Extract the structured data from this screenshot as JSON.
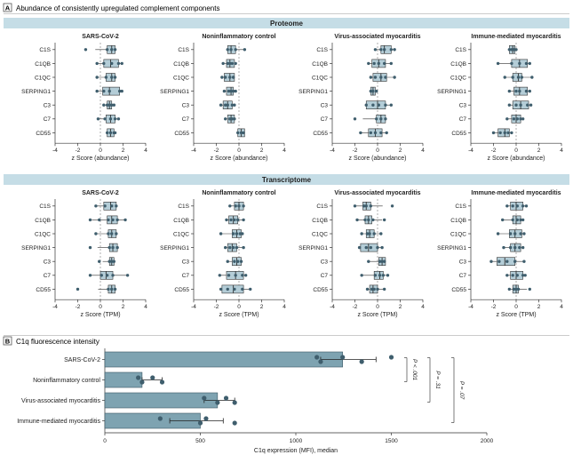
{
  "panelA": {
    "letter": "A",
    "title": "Abundance of consistently upregulated complement components",
    "sections": [
      {
        "header": "Proteome",
        "xlabel": "z Score (abundance)",
        "charts": [
          {
            "title": "SARS-CoV-2",
            "boxes": [
              {
                "q1": 0.6,
                "median": 1.0,
                "q3": 1.3,
                "points": [
                  -1.3,
                  0.6,
                  1.0,
                  1.3
                ]
              },
              {
                "q1": 0.3,
                "median": 0.9,
                "q3": 1.6,
                "points": [
                  -0.3,
                  0.3,
                  1.0,
                  1.6,
                  1.9
                ]
              },
              {
                "q1": 0.5,
                "median": 1.0,
                "q3": 1.3,
                "points": [
                  -0.3,
                  0.5,
                  1.0,
                  1.3
                ]
              },
              {
                "q1": 0.2,
                "median": 0.8,
                "q3": 1.7,
                "points": [
                  -0.3,
                  0.3,
                  0.8,
                  1.7,
                  1.9
                ]
              },
              {
                "q1": 0.6,
                "median": 0.8,
                "q3": 1.0,
                "points": [
                  0.3,
                  0.6,
                  0.8,
                  1.0,
                  1.2
                ]
              },
              {
                "q1": 0.5,
                "median": 0.9,
                "q3": 1.3,
                "points": [
                  -0.2,
                  0.4,
                  0.9,
                  1.3,
                  1.6
                ]
              },
              {
                "q1": 0.6,
                "median": 0.9,
                "q3": 1.2,
                "points": [
                  0.6,
                  0.9,
                  1.2,
                  1.3
                ]
              }
            ]
          },
          {
            "title": "Noninflammatory control",
            "boxes": [
              {
                "q1": -1.0,
                "median": -0.7,
                "q3": -0.3,
                "points": [
                  -1.0,
                  -0.7,
                  -0.3,
                  0.5
                ]
              },
              {
                "q1": -1.1,
                "median": -0.8,
                "q3": -0.4,
                "points": [
                  -1.4,
                  -1.0,
                  -0.8,
                  -0.6,
                  -0.3
                ]
              },
              {
                "q1": -1.3,
                "median": -0.8,
                "q3": -0.4,
                "points": [
                  -1.5,
                  -1.2,
                  -0.8,
                  -0.5
                ]
              },
              {
                "q1": -1.1,
                "median": -0.7,
                "q3": -0.5,
                "points": [
                  -1.3,
                  -0.9,
                  -0.7,
                  -0.5,
                  -0.3
                ]
              },
              {
                "q1": -1.4,
                "median": -1.0,
                "q3": -0.6,
                "points": [
                  -1.6,
                  -1.2,
                  -1.0,
                  -0.6,
                  -0.4
                ]
              },
              {
                "q1": -1.0,
                "median": -0.7,
                "q3": -0.4,
                "points": [
                  -1.2,
                  -0.8,
                  -0.6,
                  -0.4
                ]
              },
              {
                "q1": -0.1,
                "median": 0.2,
                "q3": 0.5,
                "points": [
                  -0.1,
                  0.2,
                  0.4
                ]
              }
            ]
          },
          {
            "title": "Virus-associated myocarditis",
            "boxes": [
              {
                "q1": 0.3,
                "median": 0.6,
                "q3": 1.2,
                "points": [
                  -0.2,
                  0.3,
                  0.6,
                  1.2,
                  1.5
                ]
              },
              {
                "q1": -0.5,
                "median": 0.1,
                "q3": 0.7,
                "points": [
                  -0.8,
                  -0.3,
                  0.1,
                  0.6,
                  1.2
                ]
              },
              {
                "q1": -0.4,
                "median": 0.3,
                "q3": 0.8,
                "points": [
                  -0.6,
                  -0.2,
                  0.3,
                  0.7,
                  1.5
                ]
              },
              {
                "q1": -0.6,
                "median": -0.4,
                "q3": -0.2,
                "points": [
                  -0.6,
                  -0.4,
                  -0.1
                ]
              },
              {
                "q1": -1.0,
                "median": 0.0,
                "q3": 0.7,
                "points": [
                  -1.0,
                  -0.4,
                  0.1,
                  0.7,
                  1.2
                ]
              },
              {
                "q1": -0.1,
                "median": 0.3,
                "q3": 0.7,
                "points": [
                  -2.0,
                  -0.1,
                  0.3,
                  0.7
                ]
              },
              {
                "q1": -0.8,
                "median": -0.2,
                "q3": 0.4,
                "points": [
                  -1.5,
                  -0.6,
                  -0.2,
                  0.3,
                  0.8
                ]
              }
            ]
          },
          {
            "title": "Immune-mediated myocarditis",
            "boxes": [
              {
                "q1": -0.6,
                "median": -0.3,
                "q3": -0.1,
                "points": [
                  -0.6,
                  -0.4,
                  -0.2,
                  0.0
                ]
              },
              {
                "q1": -0.4,
                "median": 0.3,
                "q3": 1.0,
                "points": [
                  -1.6,
                  -0.4,
                  0.3,
                  0.9,
                  1.2
                ]
              },
              {
                "q1": -0.3,
                "median": 0.2,
                "q3": 0.5,
                "points": [
                  -1.0,
                  -0.3,
                  0.2,
                  0.5,
                  1.4
                ]
              },
              {
                "q1": -0.2,
                "median": 0.3,
                "q3": 1.0,
                "points": [
                  -0.6,
                  0.0,
                  0.3,
                  0.9,
                  1.2
                ]
              },
              {
                "q1": -0.3,
                "median": 0.4,
                "q3": 1.1,
                "points": [
                  -0.6,
                  0.0,
                  0.4,
                  1.0,
                  1.3
                ]
              },
              {
                "q1": -0.4,
                "median": 0.0,
                "q3": 0.4,
                "points": [
                  -0.8,
                  -0.2,
                  0.1,
                  0.4,
                  0.6
                ]
              },
              {
                "q1": -1.6,
                "median": -1.0,
                "q3": -0.6,
                "points": [
                  -2.0,
                  -1.4,
                  -1.0,
                  -0.7,
                  -0.4
                ]
              }
            ]
          }
        ]
      },
      {
        "header": "Transcriptome",
        "xlabel": "z Score (TPM)",
        "charts": [
          {
            "title": "SARS-CoV-2",
            "boxes": [
              {
                "q1": 0.3,
                "median": 0.9,
                "q3": 1.4,
                "points": [
                  -0.4,
                  0.4,
                  1.0,
                  1.4
                ]
              },
              {
                "q1": 0.6,
                "median": 1.0,
                "q3": 1.5,
                "points": [
                  -0.9,
                  -0.1,
                  0.7,
                  1.1,
                  1.5,
                  2.2
                ]
              },
              {
                "q1": 0.7,
                "median": 1.0,
                "q3": 1.4,
                "points": [
                  -0.4,
                  0.7,
                  1.0,
                  1.4
                ]
              },
              {
                "q1": 0.8,
                "median": 1.1,
                "q3": 1.5,
                "points": [
                  -0.9,
                  0.8,
                  1.1,
                  1.5
                ]
              },
              {
                "q1": 0.8,
                "median": 1.0,
                "q3": 1.2,
                "points": [
                  -0.1,
                  0.8,
                  1.0,
                  1.2
                ]
              },
              {
                "q1": 0.0,
                "median": 0.5,
                "q3": 1.1,
                "points": [
                  -0.9,
                  0.1,
                  0.6,
                  1.1,
                  2.4
                ]
              },
              {
                "q1": 0.7,
                "median": 1.0,
                "q3": 1.3,
                "points": [
                  -2.0,
                  0.7,
                  1.0,
                  1.3
                ]
              }
            ]
          },
          {
            "title": "Noninflammatory control",
            "boxes": [
              {
                "q1": -0.4,
                "median": 0.0,
                "q3": 0.4,
                "points": [
                  -0.8,
                  -0.3,
                  0.0,
                  0.4
                ]
              },
              {
                "q1": -0.9,
                "median": -0.5,
                "q3": -0.1,
                "points": [
                  -1.1,
                  -0.7,
                  -0.4,
                  -0.1,
                  0.4
                ]
              },
              {
                "q1": -0.6,
                "median": -0.2,
                "q3": 0.2,
                "points": [
                  -1.6,
                  -0.5,
                  -0.2,
                  0.1,
                  0.3
                ]
              },
              {
                "q1": -1.0,
                "median": -0.6,
                "q3": -0.2,
                "points": [
                  -1.2,
                  -0.8,
                  -0.5,
                  -0.2,
                  0.4
                ]
              },
              {
                "q1": -0.6,
                "median": -0.2,
                "q3": 0.2,
                "points": [
                  -1.0,
                  -0.4,
                  -0.1,
                  0.2
                ]
              },
              {
                "q1": -1.1,
                "median": -0.3,
                "q3": 0.4,
                "points": [
                  -1.7,
                  -0.9,
                  -0.3,
                  0.3,
                  0.6
                ]
              },
              {
                "q1": -1.5,
                "median": -0.5,
                "q3": 0.4,
                "points": [
                  -1.6,
                  -1.0,
                  -0.4,
                  0.3,
                  1.0
                ]
              }
            ]
          },
          {
            "title": "Virus-associated myocarditis",
            "boxes": [
              {
                "q1": -1.3,
                "median": -1.0,
                "q3": -0.6,
                "points": [
                  -2.0,
                  -1.2,
                  -1.0,
                  -0.6,
                  1.3
                ]
              },
              {
                "q1": -1.1,
                "median": -0.8,
                "q3": -0.5,
                "points": [
                  -1.8,
                  -1.1,
                  -0.8,
                  -0.4,
                  0.6
                ]
              },
              {
                "q1": -1.0,
                "median": -0.7,
                "q3": -0.3,
                "points": [
                  -1.4,
                  -0.9,
                  -0.7,
                  -0.3,
                  0.3
                ]
              },
              {
                "q1": -1.5,
                "median": -0.8,
                "q3": 0.0,
                "points": [
                  -1.6,
                  -1.0,
                  -0.6,
                  0.0,
                  0.4
                ]
              },
              {
                "q1": 0.1,
                "median": 0.4,
                "q3": 0.7,
                "points": [
                  -0.8,
                  0.2,
                  0.4,
                  0.6
                ]
              },
              {
                "q1": -0.3,
                "median": 0.2,
                "q3": 0.5,
                "points": [
                  -1.4,
                  -0.2,
                  0.2,
                  0.5,
                  0.9
                ]
              },
              {
                "q1": -0.7,
                "median": -0.4,
                "q3": 0.0,
                "points": [
                  -0.9,
                  -0.5,
                  -0.3,
                  0.0,
                  0.6
                ]
              }
            ]
          },
          {
            "title": "Immune-mediated myocarditis",
            "boxes": [
              {
                "q1": -0.5,
                "median": 0.0,
                "q3": 0.6,
                "points": [
                  -0.8,
                  -0.3,
                  0.1,
                  0.6,
                  0.9
                ]
              },
              {
                "q1": -0.3,
                "median": 0.0,
                "q3": 0.4,
                "points": [
                  -1.2,
                  -0.3,
                  0.1,
                  0.4,
                  0.6
                ]
              },
              {
                "q1": -0.6,
                "median": -0.1,
                "q3": 0.5,
                "points": [
                  -1.6,
                  -0.5,
                  -0.1,
                  0.4,
                  0.7
                ]
              },
              {
                "q1": -0.5,
                "median": -0.1,
                "q3": 0.4,
                "points": [
                  -1.1,
                  -0.5,
                  -0.1,
                  0.3,
                  0.6
                ]
              },
              {
                "q1": -1.7,
                "median": -1.0,
                "q3": -0.1,
                "points": [
                  -2.2,
                  -1.5,
                  -0.8,
                  -0.1,
                  0.7
                ]
              },
              {
                "q1": -0.5,
                "median": 0.0,
                "q3": 0.6,
                "points": [
                  -0.8,
                  -0.3,
                  0.1,
                  0.6,
                  0.8
                ]
              },
              {
                "q1": -0.3,
                "median": 0.0,
                "q3": 0.2,
                "points": [
                  -0.6,
                  -0.2,
                  0.0,
                  0.2,
                  1.2
                ]
              }
            ]
          }
        ]
      }
    ]
  },
  "panelB": {
    "letter": "B",
    "title": "C1q fluorescence intensity",
    "xlabel": "C1q expression (MFI), median",
    "xticks": [
      0,
      500,
      1000,
      1500,
      2000
    ],
    "xlim": [
      0,
      2000
    ],
    "bars": [
      {
        "label": "SARS-CoV-2",
        "value": 1245,
        "err_low": 1130,
        "err_high": 1420,
        "points": [
          1110,
          1130,
          1245,
          1345,
          1500
        ]
      },
      {
        "label": "Noninflammatory control",
        "value": 195,
        "err_low": 195,
        "err_high": 300,
        "points": [
          175,
          195,
          250,
          300
        ]
      },
      {
        "label": "Virus-associated myocarditis",
        "value": 590,
        "err_low": 520,
        "err_high": 680,
        "points": [
          520,
          590,
          635,
          680
        ]
      },
      {
        "label": "Immune-mediated myocarditis",
        "value": 500,
        "err_low": 340,
        "err_high": 620,
        "points": [
          290,
          500,
          530,
          680
        ]
      }
    ],
    "pvalues": [
      {
        "text": "P < .001",
        "from": 0,
        "to": 1
      },
      {
        "text": "P = .31",
        "from": 0,
        "to": 2
      },
      {
        "text": "P = .07",
        "from": 0,
        "to": 3
      }
    ]
  },
  "chart_data": [
    {
      "type": "box",
      "title": "Proteome",
      "xlabel": "z Score (abundance)",
      "xlim": [
        -4,
        4
      ],
      "categories": [
        "C1S",
        "C1QB",
        "C1QC",
        "SERPING1",
        "C3",
        "C7",
        "CD55"
      ],
      "groups": [
        "SARS-CoV-2",
        "Noninflammatory control",
        "Virus-associated myocarditis",
        "Immune-mediated myocarditis"
      ]
    },
    {
      "type": "box",
      "title": "Transcriptome",
      "xlabel": "z Score (TPM)",
      "xlim": [
        -4,
        4
      ],
      "categories": [
        "C1S",
        "C1QB",
        "C1QC",
        "SERPING1",
        "C3",
        "C7",
        "CD55"
      ],
      "groups": [
        "SARS-CoV-2",
        "Noninflammatory control",
        "Virus-associated myocarditis",
        "Immune-mediated myocarditis"
      ]
    },
    {
      "type": "bar",
      "orientation": "horizontal",
      "title": "C1q fluorescence intensity",
      "categories": [
        "SARS-CoV-2",
        "Noninflammatory control",
        "Virus-associated myocarditis",
        "Immune-mediated myocarditis"
      ],
      "values": [
        1245,
        195,
        590,
        500
      ],
      "xlabel": "C1q expression (MFI), median",
      "xlim": [
        0,
        2000
      ]
    }
  ],
  "genes": [
    "C1S",
    "C1QB",
    "C1QC",
    "SERPING1",
    "C3",
    "C7",
    "CD55"
  ],
  "zticks": [
    -4,
    -2,
    0,
    2,
    4
  ],
  "zlim": [
    -4,
    4
  ],
  "colors": {
    "header_band": "#c5dde6",
    "box_fill": "#b4cdd7",
    "bar_fill": "#7ea3b1",
    "point": "#3f5e6d",
    "line": "#333333",
    "panel_border": "#9a9a9a"
  }
}
